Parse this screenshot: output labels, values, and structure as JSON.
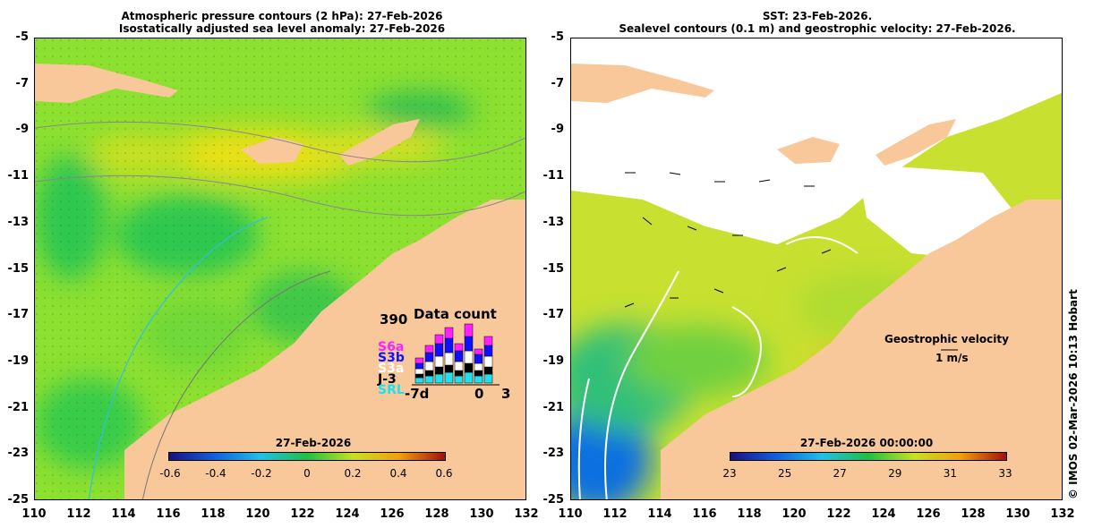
{
  "left_panel": {
    "title_line1": "Atmospheric pressure contours (2 hPa): 27-Feb-2026",
    "title_line2": "Isostatically adjusted sea level anomaly: 27-Feb-2026",
    "colorbar_date": "27-Feb-2026",
    "colorbar_ticks": [
      "-0.6",
      "-0.4",
      "-0.2",
      "0",
      "0.2",
      "0.4",
      "0.6"
    ],
    "colorbar_colors": [
      "#1a1080",
      "#1060e0",
      "#20c0e8",
      "#20c040",
      "#c8e020",
      "#f0a010",
      "#a01010"
    ],
    "data_count": {
      "title": "Data count",
      "max": "390",
      "x_left": "-7d",
      "x_mid": "0",
      "x_right": "3",
      "missions": [
        "S6a",
        "S3b",
        "S3a",
        "J-3",
        "SRL"
      ],
      "mission_colors": [
        "#ff20ff",
        "#1010ff",
        "#ffffff",
        "#000000",
        "#20e0f0"
      ]
    }
  },
  "right_panel": {
    "title_line1": "SST: 23-Feb-2026.",
    "title_line2": "Sealevel contours (0.1 m) and geostrophic velocity: 27-Feb-2026.",
    "colorbar_date": "27-Feb-2026 00:00:00",
    "colorbar_ticks": [
      "23",
      "25",
      "27",
      "29",
      "31",
      "33"
    ],
    "colorbar_colors": [
      "#1a1080",
      "#1060e0",
      "#20c0e8",
      "#20c040",
      "#c8e020",
      "#f0a010",
      "#a01010"
    ],
    "velocity_label": "Geostrophic velocity",
    "velocity_scale": "1 m/s"
  },
  "axes": {
    "y_ticks": [
      "-5",
      "-7",
      "-9",
      "-11",
      "-13",
      "-15",
      "-17",
      "-19",
      "-21",
      "-23",
      "-25"
    ],
    "x_ticks": [
      "110",
      "112",
      "114",
      "116",
      "118",
      "120",
      "122",
      "124",
      "126",
      "128",
      "130",
      "132"
    ]
  },
  "colors": {
    "land": "#f8c89a",
    "ocean_green": "#7ee020",
    "cloud": "#ffffff"
  },
  "copyright": "© IMOS 02-Mar-2026 10:13 Hobart"
}
